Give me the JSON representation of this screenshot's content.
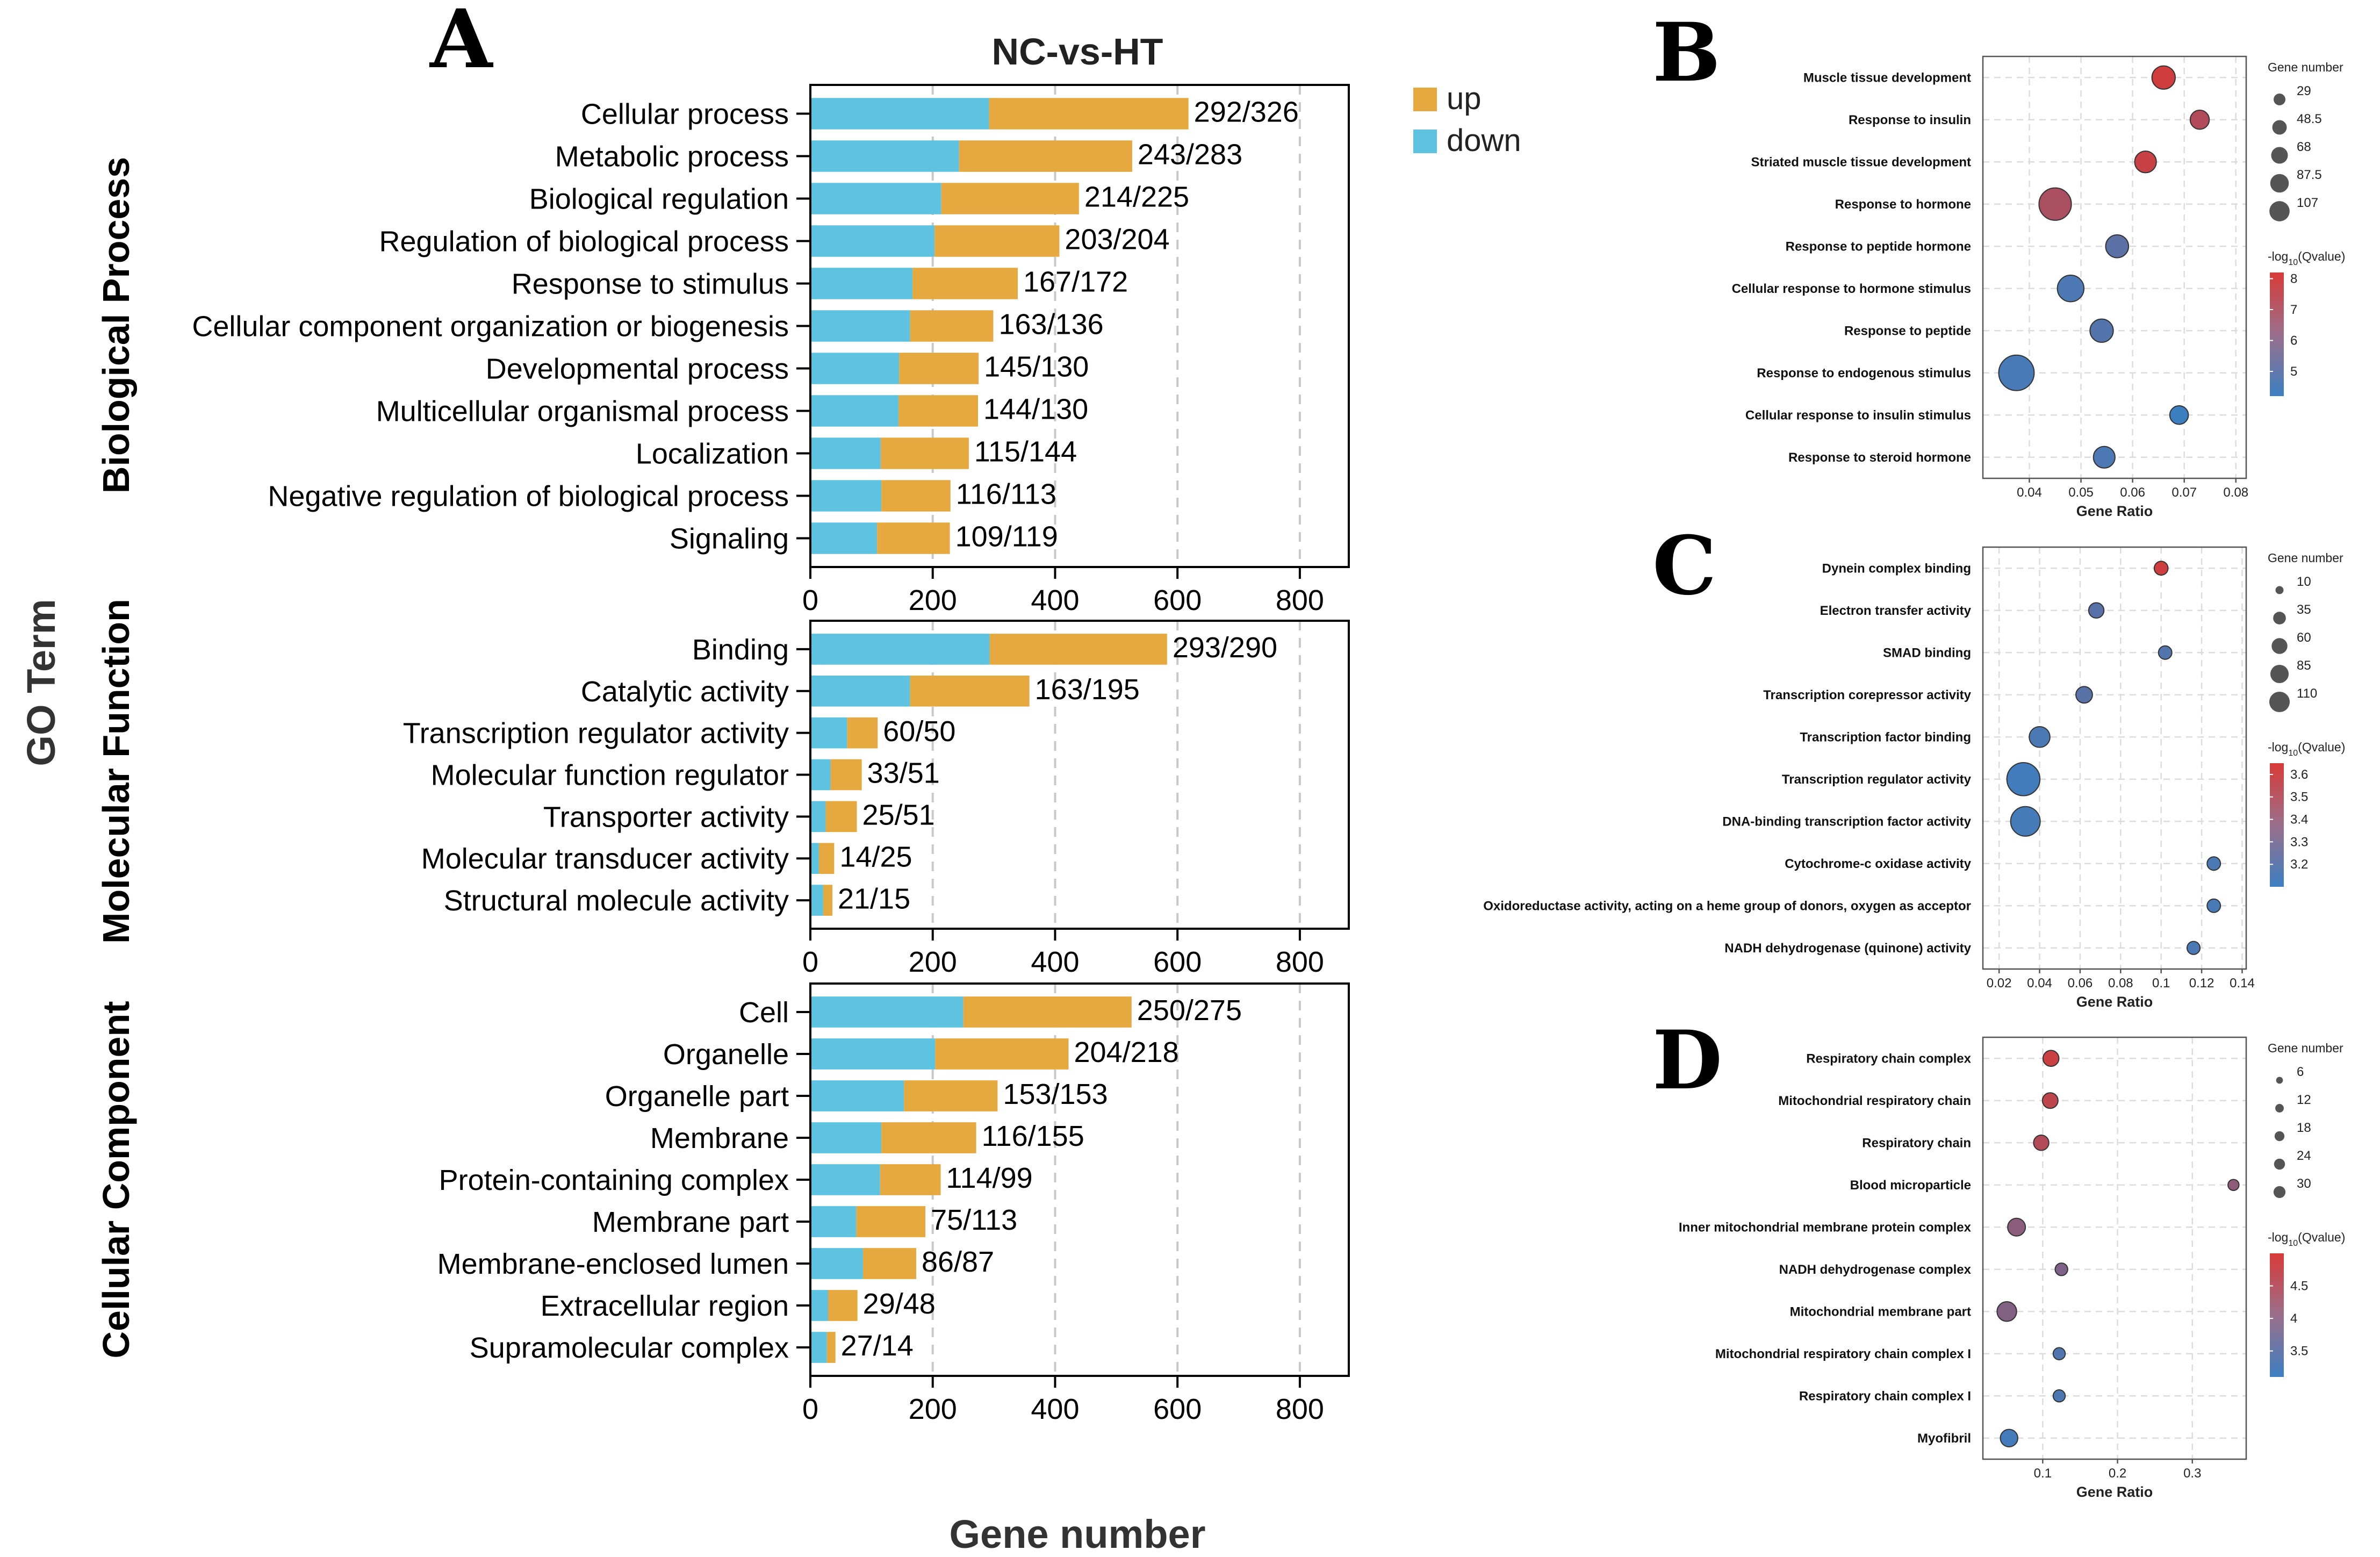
{
  "figure": {
    "letters": [
      "A",
      "B",
      "C",
      "D"
    ],
    "bar_title": "NC-vs-HT",
    "bar_xlabel": "Gene number",
    "bar_ylabel": "GO Term",
    "group_labels": [
      "Biological Process",
      "Molecular Function",
      "Cellular Component"
    ],
    "legend": {
      "up": "up",
      "down": "down"
    },
    "dot_xlabel": "Gene Ratio",
    "dot_size_title": "Gene number",
    "dot_color_title": "-log10(Qvalue)"
  },
  "colors": {
    "up": "#E6A93F",
    "down": "#5EC3E1",
    "high_q": "#D83A37",
    "low_q": "#3C7FC1"
  },
  "chart_data": [
    {
      "panel": "A",
      "type": "bar",
      "stacked": true,
      "title": "NC-vs-HT",
      "xlabel": "Gene number",
      "ylabel": "GO Term",
      "xlim": [
        0,
        880
      ],
      "xticks": [
        0,
        200,
        400,
        600,
        800
      ],
      "groups": [
        {
          "name": "Biological Process",
          "categories": [
            "Cellular process",
            "Metabolic process",
            "Biological regulation",
            "Regulation of biological process",
            "Response to stimulus",
            "Cellular component organization or biogenesis",
            "Developmental process",
            "Multicellular organismal process",
            "Localization",
            "Negative regulation of biological process",
            "Signaling"
          ],
          "down": [
            292,
            243,
            214,
            203,
            167,
            163,
            145,
            144,
            115,
            116,
            109
          ],
          "up": [
            326,
            283,
            225,
            204,
            172,
            136,
            130,
            130,
            144,
            113,
            119
          ],
          "labels": [
            "292/326",
            "243/283",
            "214/225",
            "203/204",
            "167/172",
            "163/136",
            "145/130",
            "144/130",
            "115/144",
            "116/113",
            "109/119"
          ]
        },
        {
          "name": "Molecular Function",
          "categories": [
            "Binding",
            "Catalytic activity",
            "Transcription regulator activity",
            "Molecular function regulator",
            "Transporter activity",
            "Molecular transducer activity",
            "Structural molecule activity"
          ],
          "down": [
            293,
            163,
            60,
            33,
            25,
            14,
            21
          ],
          "up": [
            290,
            195,
            50,
            51,
            51,
            25,
            15
          ],
          "labels": [
            "293/290",
            "163/195",
            "60/50",
            "33/51",
            "25/51",
            "14/25",
            "21/15"
          ]
        },
        {
          "name": "Cellular Component",
          "categories": [
            "Cell",
            "Organelle",
            "Organelle part",
            "Membrane",
            "Protein-containing complex",
            "Membrane part",
            "Membrane-enclosed lumen",
            "Extracellular region",
            "Supramolecular complex"
          ],
          "down": [
            250,
            204,
            153,
            116,
            114,
            75,
            86,
            29,
            27
          ],
          "up": [
            275,
            218,
            153,
            155,
            99,
            113,
            87,
            48,
            14
          ],
          "labels": [
            "250/275",
            "204/218",
            "153/153",
            "116/155",
            "114/99",
            "75/113",
            "86/87",
            "29/48",
            "27/14"
          ]
        }
      ]
    },
    {
      "panel": "B",
      "type": "scatter",
      "xlabel": "Gene Ratio",
      "xlim": [
        0.031,
        0.082
      ],
      "xticks": [
        0.04,
        0.05,
        0.06,
        0.07,
        0.08
      ],
      "xtick_labels": [
        "0.04",
        "0.05",
        "0.06",
        "0.07",
        "0.08"
      ],
      "categories": [
        "Muscle tissue development",
        "Response to insulin",
        "Striated muscle tissue development",
        "Response to hormone",
        "Response to peptide hormone",
        "Cellular response to hormone stimulus",
        "Response to peptide",
        "Response to endogenous stimulus",
        "Cellular response to insulin stimulus",
        "Response to steroid hormone"
      ],
      "x": [
        0.066,
        0.073,
        0.0625,
        0.045,
        0.057,
        0.048,
        0.054,
        0.0375,
        0.069,
        0.0545
      ],
      "size": [
        48,
        29,
        40,
        105,
        46,
        66,
        48,
        129,
        27,
        40
      ],
      "color_value": [
        8.0,
        7.2,
        7.8,
        7.0,
        5.0,
        4.6,
        4.8,
        4.5,
        4.2,
        4.6
      ],
      "size_legend": [
        29,
        48.5,
        68,
        87.5,
        107
      ],
      "size_legend_labels": [
        "29",
        "48.5",
        "68",
        "87.5",
        "107"
      ],
      "color_legend": [
        8,
        7,
        6,
        5
      ],
      "color_legend_labels": [
        "8",
        "7",
        "6",
        "5"
      ],
      "color_range": [
        4.2,
        8.2
      ]
    },
    {
      "panel": "C",
      "type": "scatter",
      "xlabel": "Gene Ratio",
      "xlim": [
        0.012,
        0.142
      ],
      "xticks": [
        0.02,
        0.04,
        0.06,
        0.08,
        0.1,
        0.12,
        0.14
      ],
      "xtick_labels": [
        "0.02",
        "0.04",
        "0.06",
        "0.08",
        "0.1",
        "0.12",
        "0.14"
      ],
      "categories": [
        "Dynein complex binding",
        "Electron transfer activity",
        "SMAD binding",
        "Transcription corepressor activity",
        "Transcription factor binding",
        "Transcription regulator activity",
        "DNA-binding transcription factor activity",
        "Cytochrome-c oxidase activity",
        "Oxidoreductase activity, acting on a heme group of donors, oxygen as acceptor",
        "NADH dehydrogenase (quinone) activity"
      ],
      "x": [
        0.1,
        0.068,
        0.102,
        0.062,
        0.04,
        0.032,
        0.033,
        0.126,
        0.126,
        0.116
      ],
      "size": [
        12,
        16,
        11,
        20,
        36,
        110,
        85,
        11,
        11,
        10
      ],
      "color_value": [
        3.62,
        3.2,
        3.18,
        3.2,
        3.15,
        3.12,
        3.13,
        3.15,
        3.14,
        3.15
      ],
      "size_legend": [
        10,
        35,
        60,
        85,
        110
      ],
      "size_legend_labels": [
        "10",
        "35",
        "60",
        "85",
        "110"
      ],
      "color_legend": [
        3.6,
        3.5,
        3.4,
        3.3,
        3.2
      ],
      "color_legend_labels": [
        "3.6",
        "3.5",
        "3.4",
        "3.3",
        "3.2"
      ],
      "color_range": [
        3.1,
        3.65
      ]
    },
    {
      "panel": "D",
      "type": "scatter",
      "xlabel": "Gene Ratio",
      "xlim": [
        0.02,
        0.372
      ],
      "xticks": [
        0.1,
        0.2,
        0.3
      ],
      "xtick_labels": [
        "0.1",
        "0.2",
        "0.3"
      ],
      "categories": [
        "Respiratory chain complex",
        "Mitochondrial respiratory chain",
        "Respiratory chain",
        "Blood microparticle",
        "Inner mitochondrial membrane protein complex",
        "NADH dehydrogenase complex",
        "Mitochondrial membrane part",
        "Mitochondrial respiratory chain complex I",
        "Respiratory chain complex I",
        "Myofibril"
      ],
      "x": [
        0.111,
        0.11,
        0.098,
        0.355,
        0.065,
        0.125,
        0.052,
        0.122,
        0.122,
        0.055
      ],
      "size": [
        18,
        17,
        16,
        6,
        24,
        9,
        31,
        8,
        8,
        23
      ],
      "color_value": [
        4.85,
        4.7,
        4.55,
        4.1,
        4.05,
        3.9,
        3.95,
        3.35,
        3.3,
        3.2
      ],
      "size_legend": [
        6,
        12,
        18,
        24,
        30
      ],
      "size_legend_labels": [
        "6",
        "12",
        "18",
        "24",
        "30"
      ],
      "color_legend": [
        4.5,
        4,
        3.5
      ],
      "color_legend_labels": [
        "4.5",
        "4",
        "3.5"
      ],
      "color_range": [
        3.1,
        5.0
      ]
    }
  ]
}
